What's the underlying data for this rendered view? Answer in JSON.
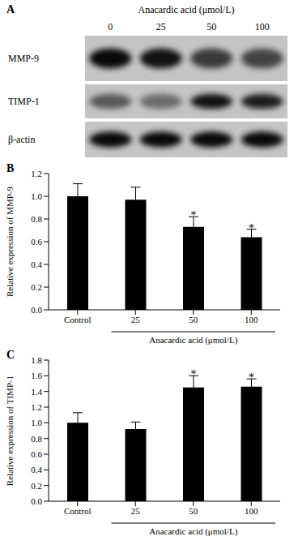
{
  "blot": {
    "label": "A",
    "title": "Anacardic acid (μmol/L)",
    "lanes": [
      "0",
      "25",
      "50",
      "100"
    ],
    "rows": [
      "MMP-9",
      "TIMP-1",
      "β-actin"
    ]
  },
  "chart_data": [
    {
      "label": "B",
      "type": "bar",
      "categories": [
        "Control",
        "25",
        "50",
        "100"
      ],
      "values": [
        1.0,
        0.97,
        0.73,
        0.64
      ],
      "errors": [
        0.11,
        0.11,
        0.09,
        0.07
      ],
      "annotations": [
        {
          "category": "50",
          "text": "*"
        },
        {
          "category": "100",
          "text": "*"
        }
      ],
      "group": {
        "label": "Anacardic acid (μmol/L)",
        "categories": [
          "25",
          "50",
          "100"
        ]
      },
      "y_label": "Relative expression of MMP-9",
      "color": "#000000",
      "ylim": [
        0,
        1.2
      ],
      "yticks": [
        {
          "value": 0,
          "label": "0.0"
        },
        0.2,
        0.4,
        0.6,
        0.8,
        {
          "value": 1,
          "label": "1.0"
        },
        1.2
      ]
    },
    {
      "label": "C",
      "type": "bar",
      "categories": [
        "Control",
        "25",
        "50",
        "100"
      ],
      "values": [
        1.0,
        0.92,
        1.45,
        1.46
      ],
      "errors": [
        0.13,
        0.09,
        0.15,
        0.1
      ],
      "annotations": [
        {
          "category": "50",
          "text": "*"
        },
        {
          "category": "100",
          "text": "*"
        }
      ],
      "group": {
        "label": "Anacardic acid (μmol/L)",
        "categories": [
          "25",
          "50",
          "100"
        ]
      },
      "y_label": "Relative expression of TIMP-1",
      "color": "#000000",
      "ylim": [
        0,
        1.8
      ],
      "yticks": [
        {
          "value": 0,
          "label": "0.0"
        },
        0.2,
        0.4,
        0.6,
        0.8,
        {
          "value": 1,
          "label": "1.0"
        },
        1.2,
        1.4,
        1.6,
        1.8
      ]
    }
  ]
}
